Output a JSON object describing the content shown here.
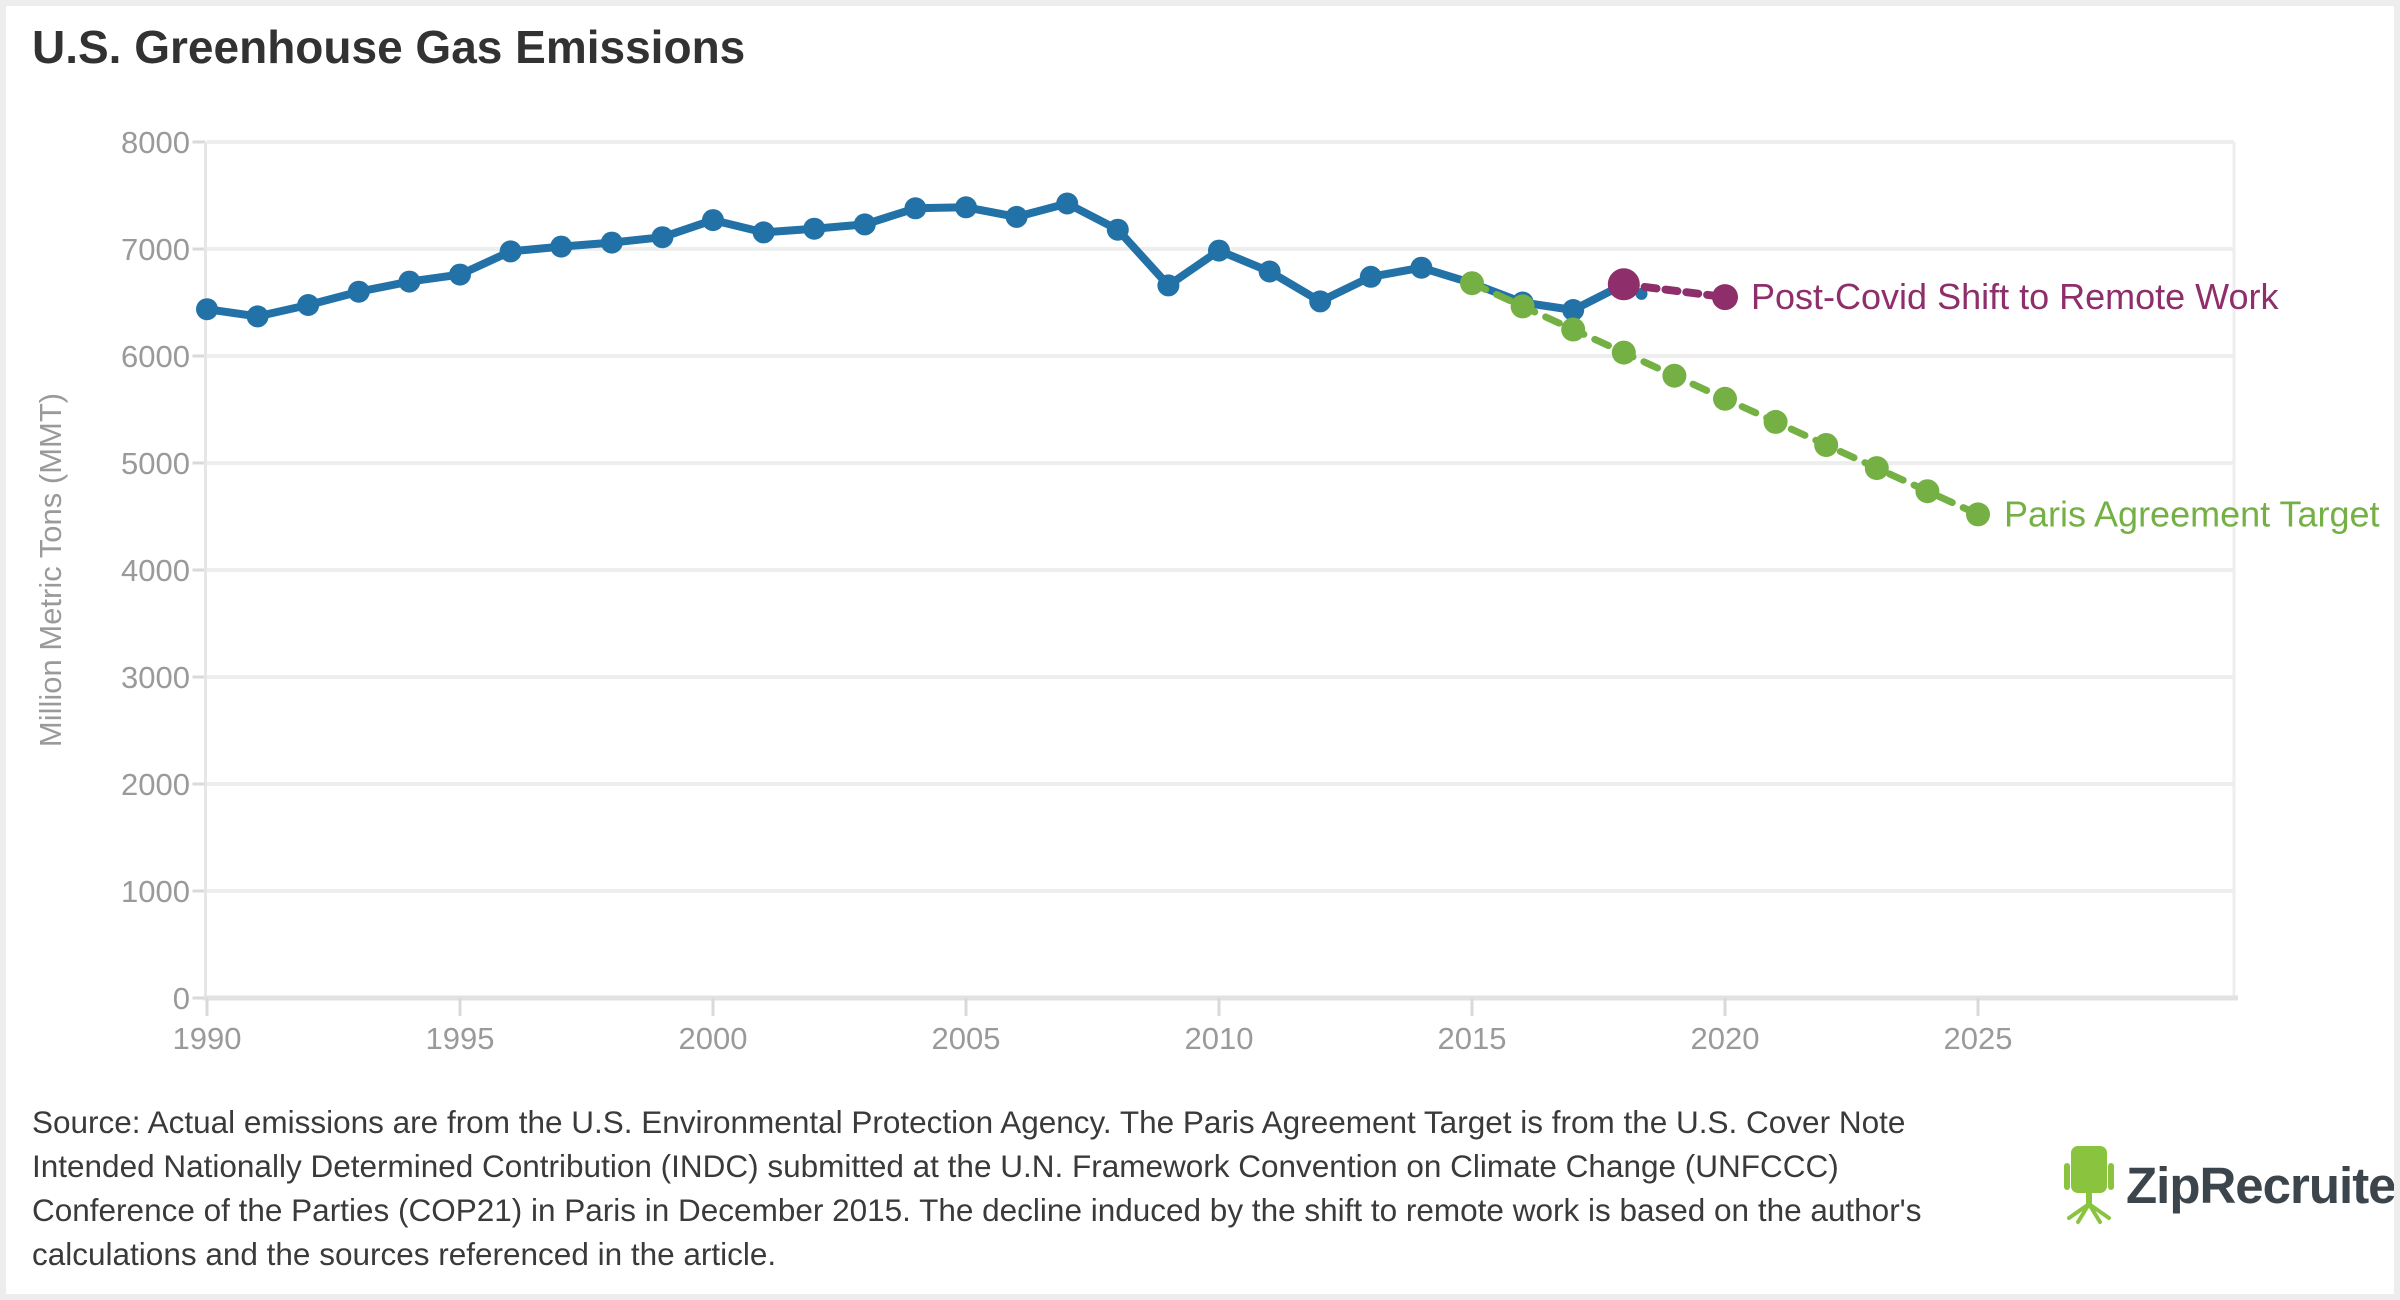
{
  "title": "U.S. Greenhouse Gas Emissions",
  "source": {
    "lines": [
      "Source: Actual emissions are from the U.S. Environmental Protection Agency. The Paris Agreement Target is from the U.S. Cover Note",
      "Intended Nationally Determined Contribution (INDC) submitted at the U.N. Framework Convention on Climate Change (UNFCCC)",
      "Conference of the Parties (COP21) in Paris in December 2015. The decline induced by the shift to remote work is based on the author's",
      "calculations and the sources referenced in the article."
    ]
  },
  "logo": {
    "text": "ZipRecruiter",
    "registered": "®",
    "chair_color": "#8ac43f",
    "text_color": "#3d454c"
  },
  "colors": {
    "title_text": "#323232",
    "axis_text": "#9a9a9a",
    "gridline": "#eeeeee",
    "axis_line": "#e2e2e2",
    "tick": "#d9d9d9",
    "actual_blue": "#2272a8",
    "remote_purple": "#8e2e6a",
    "paris_green": "#74b043"
  },
  "chart_data": {
    "type": "line",
    "title": "U.S. Greenhouse Gas Emissions",
    "xlabel": "",
    "ylabel": "Million Metric Tons (MMT)",
    "ylim": [
      0,
      8000
    ],
    "ytick_step": 1000,
    "xlim": [
      1990,
      2030
    ],
    "xticks": [
      1990,
      1995,
      2000,
      2005,
      2010,
      2015,
      2020,
      2025
    ],
    "grid": "horizontal-only",
    "legend": "inline-labels-right-of-last-point",
    "series": [
      {
        "name": "Actual emissions",
        "color": "#2272a8",
        "style": "solid",
        "line_width": 8,
        "dot_radius": 11,
        "x": [
          1990,
          1991,
          1992,
          1993,
          1994,
          1995,
          1996,
          1997,
          1998,
          1999,
          2000,
          2001,
          2002,
          2003,
          2004,
          2005,
          2006,
          2007,
          2008,
          2009,
          2010,
          2011,
          2012,
          2013,
          2014,
          2015,
          2016,
          2017,
          2018
        ],
        "values": [
          6437,
          6370,
          6477,
          6601,
          6695,
          6761,
          6978,
          7022,
          7060,
          7110,
          7270,
          7155,
          7190,
          7230,
          7380,
          7390,
          7300,
          7425,
          7180,
          6660,
          6985,
          6790,
          6510,
          6740,
          6825,
          6680,
          6500,
          6430,
          6670
        ],
        "extra_dots": [
          {
            "x": 2018.35,
            "value": 6580,
            "r": 6
          }
        ]
      },
      {
        "name": "Paris Agreement Target",
        "label": "Paris Agreement Target",
        "color": "#74b043",
        "style": "dashed",
        "dash": "15 12",
        "line_width": 7,
        "dot_radius": 12,
        "x": [
          2015,
          2016,
          2017,
          2018,
          2019,
          2020,
          2021,
          2022,
          2023,
          2024,
          2025
        ],
        "values": [
          6680,
          6464,
          6248,
          6032,
          5816,
          5600,
          5384,
          5168,
          4952,
          4736,
          4520
        ]
      },
      {
        "name": "Post-Covid Shift to Remote Work",
        "label": "Post-Covid Shift to Remote Work",
        "color": "#8e2e6a",
        "style": "dashed",
        "dash": "12 9",
        "line_width": 8,
        "dot_radius": 13,
        "dot_radii": [
          16,
          13
        ],
        "x": [
          2018,
          2020
        ],
        "values": [
          6670,
          6550
        ]
      }
    ]
  }
}
